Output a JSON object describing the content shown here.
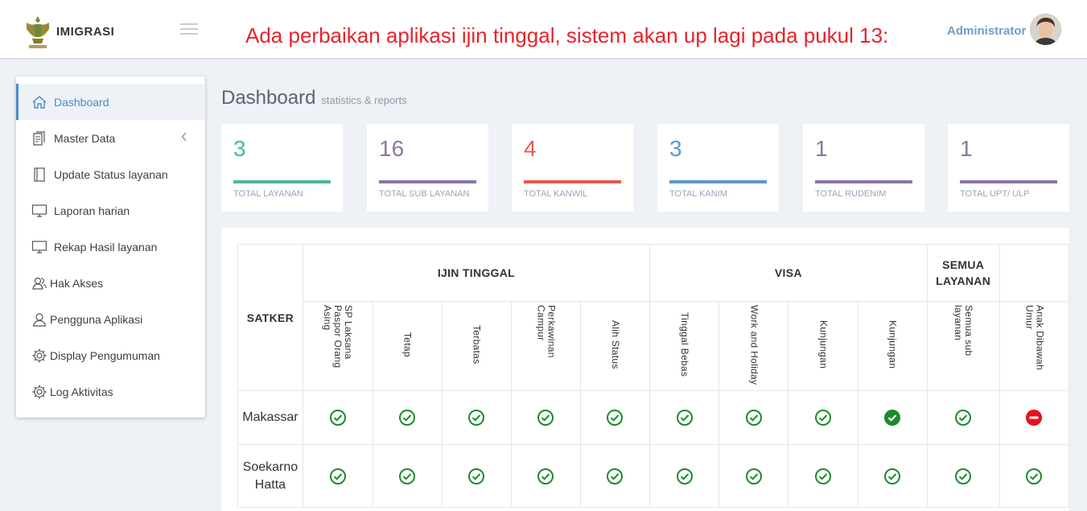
{
  "header": {
    "logo_text": "IMIGRASI",
    "announcement": "Ada perbaikan aplikasi ijin tinggal, sistem akan up lagi pada pukul 13:",
    "user_name": "Administrator"
  },
  "sidebar": {
    "items": [
      {
        "label": "Dashboard",
        "icon": "home-icon"
      },
      {
        "label": "Master Data",
        "icon": "document-icon"
      },
      {
        "label": "Update Status layanan",
        "icon": "book-icon"
      },
      {
        "label": "Laporan harian",
        "icon": "monitor-icon"
      },
      {
        "label": "Rekap Hasil layanan",
        "icon": "monitor-icon"
      },
      {
        "label": "Hak Akses",
        "icon": "users-icon"
      },
      {
        "label": "Pengguna Aplikasi",
        "icon": "user-icon"
      },
      {
        "label": "Display Pengumuman",
        "icon": "gear-icon"
      },
      {
        "label": "Log Aktivitas",
        "icon": "gear-icon"
      }
    ]
  },
  "page": {
    "title": "Dashboard",
    "subtitle": "statistics & reports"
  },
  "stats": [
    {
      "value": "3",
      "label": "TOTAL LAYANAN",
      "color": "#4fb5a0"
    },
    {
      "value": "16",
      "label": "TOTAL SUB LAYANAN",
      "color": "#8b76a8"
    },
    {
      "value": "4",
      "label": "TOTAL KANWIL",
      "color": "#e7574f"
    },
    {
      "value": "3",
      "label": "TOTAL KANIM",
      "color": "#5b97cd"
    },
    {
      "value": "1",
      "label": "TOTAL RUDENIM",
      "color": "#8b76a8"
    },
    {
      "value": "1",
      "label": "TOTAL UPT/ ULP",
      "color": "#8b76a8"
    }
  ],
  "table": {
    "satker_header": "SATKER",
    "groups": [
      "IJIN TINGGAL",
      "VISA",
      "SEMUA LAYANAN"
    ],
    "columns": [
      "SP Laksana Paspor Orang Asing",
      "Tetap",
      "Terbatas",
      "Perkawinan Campur",
      "Alih Status",
      "Tinggal Bebas",
      "Work and Holiday",
      "Kunjungan",
      "Kunjungan",
      "Semua sub layanan",
      "Anak Dibawah Umur"
    ],
    "rows": [
      {
        "satker": "Makassar",
        "status": [
          "ok",
          "ok",
          "ok",
          "ok",
          "ok",
          "ok",
          "ok",
          "ok",
          "ok-filled",
          "ok",
          "blocked"
        ]
      },
      {
        "satker": "Soekarno Hatta",
        "status": [
          "ok",
          "ok",
          "ok",
          "ok",
          "ok",
          "ok",
          "ok",
          "ok",
          "ok",
          "ok",
          "ok"
        ]
      }
    ]
  },
  "colors": {
    "accent": "#4a8bc7",
    "announcement": "#e7232c",
    "ok": "#1d8a2e",
    "blocked": "#e8101b"
  }
}
